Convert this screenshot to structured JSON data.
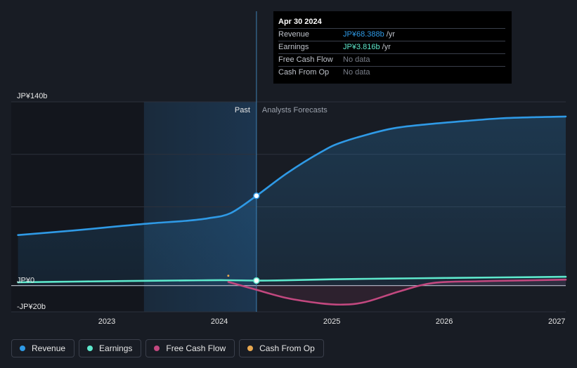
{
  "tooltip": {
    "date": "Apr 30 2024",
    "rows": [
      {
        "label": "Revenue",
        "value": "JP¥68.388b",
        "unit": " /yr"
      },
      {
        "label": "Earnings",
        "value": "JP¥3.816b",
        "unit": " /yr"
      },
      {
        "label": "Free Cash Flow",
        "value": "No data",
        "unit": ""
      },
      {
        "label": "Cash From Op",
        "value": "No data",
        "unit": ""
      }
    ]
  },
  "divider": {
    "past_label": "Past",
    "forecast_label": "Analysts Forecasts"
  },
  "legend": [
    {
      "label": "Revenue",
      "color": "#2f9ae6"
    },
    {
      "label": "Earnings",
      "color": "#5ee8cc"
    },
    {
      "label": "Free Cash Flow",
      "color": "#c2487f"
    },
    {
      "label": "Cash From Op",
      "color": "#e8a850"
    }
  ],
  "chart_data": {
    "type": "line",
    "ylim": [
      -20,
      140
    ],
    "xlim": [
      2022.15,
      2027.08
    ],
    "y_ticks": [
      {
        "value": 140,
        "label": "JP¥140b"
      },
      {
        "value": 0,
        "label": "JP¥0"
      },
      {
        "value": -20,
        "label": "-JP¥20b"
      }
    ],
    "x_ticks": [
      {
        "value": 2023,
        "label": "2023"
      },
      {
        "value": 2024,
        "label": "2024"
      },
      {
        "value": 2025,
        "label": "2025"
      },
      {
        "value": 2026,
        "label": "2026"
      },
      {
        "value": 2027,
        "label": "2027"
      }
    ],
    "highlight_start": 2023.33,
    "divider_x": 2024.33,
    "series": [
      {
        "name": "Revenue",
        "color": "#2f9ae6",
        "points": [
          [
            2022.21,
            38.5
          ],
          [
            2022.5,
            40.5
          ],
          [
            2022.8,
            42.7
          ],
          [
            2023.1,
            45.2
          ],
          [
            2023.4,
            47.5
          ],
          [
            2023.7,
            49.3
          ],
          [
            2023.9,
            51.3
          ],
          [
            2024.1,
            55.2
          ],
          [
            2024.33,
            68.4
          ],
          [
            2024.6,
            85.5
          ],
          [
            2024.9,
            101.5
          ],
          [
            2025.1,
            109.5
          ],
          [
            2025.5,
            119
          ],
          [
            2025.8,
            122.5
          ],
          [
            2026.2,
            125.5
          ],
          [
            2026.5,
            127.4
          ],
          [
            2026.8,
            128.3
          ],
          [
            2027.08,
            128.8
          ]
        ]
      },
      {
        "name": "Earnings",
        "color": "#5ee8cc",
        "points": [
          [
            2022.21,
            2.5
          ],
          [
            2022.7,
            3.0
          ],
          [
            2023.2,
            3.5
          ],
          [
            2023.7,
            3.9
          ],
          [
            2024.05,
            4.1
          ],
          [
            2024.33,
            3.8
          ],
          [
            2024.6,
            4.0
          ],
          [
            2025.0,
            4.8
          ],
          [
            2025.5,
            5.3
          ],
          [
            2026.0,
            5.8
          ],
          [
            2026.5,
            6.2
          ],
          [
            2027.08,
            6.7
          ]
        ]
      },
      {
        "name": "Free Cash Flow",
        "color": "#c2487f",
        "points": [
          [
            2024.08,
            2.8
          ],
          [
            2024.3,
            -2.5
          ],
          [
            2024.6,
            -9.5
          ],
          [
            2024.9,
            -13.5
          ],
          [
            2025.1,
            -14.5
          ],
          [
            2025.3,
            -12.5
          ],
          [
            2025.6,
            -4.5
          ],
          [
            2025.9,
            2.0
          ],
          [
            2026.3,
            3.3
          ],
          [
            2026.7,
            3.9
          ],
          [
            2027.08,
            4.5
          ]
        ]
      },
      {
        "name": "Cash From Op",
        "color": "#e8a850",
        "points": [
          [
            2024.08,
            7.5
          ]
        ]
      }
    ],
    "marker_x": 2024.33
  }
}
